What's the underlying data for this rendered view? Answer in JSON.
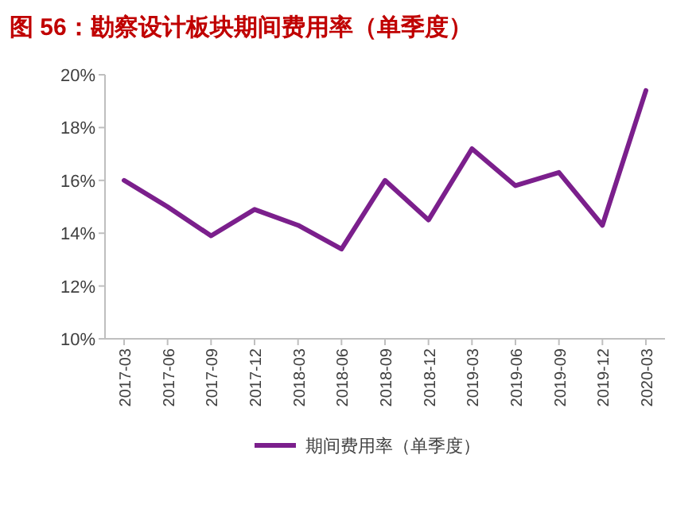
{
  "chart_data": {
    "type": "line",
    "title": "图 56：勘察设计板块期间费用率（单季度）",
    "categories": [
      "2017-03",
      "2017-06",
      "2017-09",
      "2017-12",
      "2018-03",
      "2018-06",
      "2018-09",
      "2018-12",
      "2019-03",
      "2019-06",
      "2019-09",
      "2019-12",
      "2020-03"
    ],
    "series": [
      {
        "name": "期间费用率（单季度）",
        "color": "#7b1f8c",
        "values": [
          16.0,
          15.0,
          13.9,
          14.9,
          14.3,
          13.4,
          16.0,
          14.5,
          17.2,
          15.8,
          16.3,
          14.3,
          19.4
        ]
      }
    ],
    "ylim": [
      10,
      20
    ],
    "yticks": [
      {
        "value": 10,
        "label": "10%"
      },
      {
        "value": 12,
        "label": "12%"
      },
      {
        "value": 14,
        "label": "14%"
      },
      {
        "value": 16,
        "label": "16%"
      },
      {
        "value": 18,
        "label": "18%"
      },
      {
        "value": 20,
        "label": "20%"
      }
    ],
    "grid": false,
    "legend": "bottom",
    "marker": "none",
    "line_style": "solid"
  }
}
